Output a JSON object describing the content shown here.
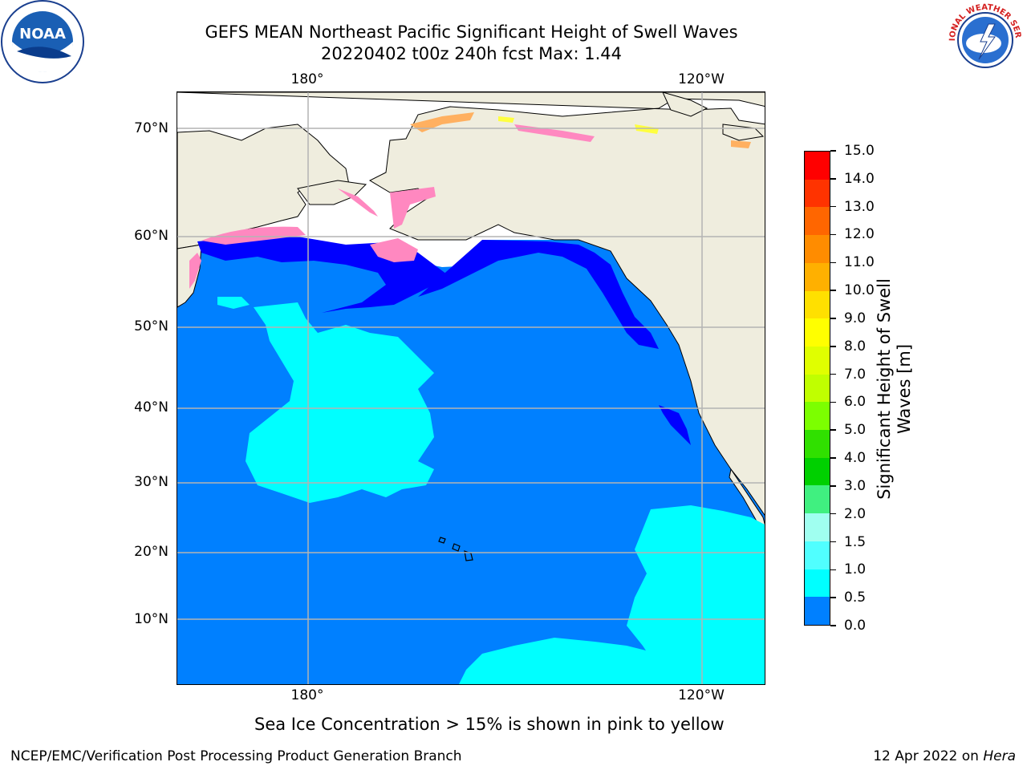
{
  "header": {
    "title_line1": "GEFS MEAN Northeast Pacific Significant Height of Swell Waves",
    "title_line2": "20220402 t00z 240h fcst   Max: 1.44"
  },
  "logos": {
    "left": {
      "text": "NOAA",
      "icon": "noaa-logo-icon"
    },
    "right": {
      "text": "NATIONAL WEATHER SERVICE",
      "icon": "nws-logo-icon"
    }
  },
  "map": {
    "lat_labels": [
      "70°N",
      "60°N",
      "50°N",
      "40°N",
      "30°N",
      "20°N",
      "10°N"
    ],
    "lon_labels": [
      "180°",
      "120°W"
    ],
    "colors": {
      "land": "#efedde",
      "ice_free_white": "#ffffff",
      "swell_0_05": "#0000ff",
      "swell_05_10": "#0080ff",
      "swell_10_15": "#00ffff",
      "ice_pink": "#ff88c0",
      "ice_orange": "#ffb060",
      "ice_yellow": "#ffff40",
      "grid": "#b4b4b4"
    }
  },
  "colorbar": {
    "label_line1": "Significant Height of Swell",
    "label_line2": "Waves [m]",
    "ticks": [
      "15.0",
      "14.0",
      "13.0",
      "12.0",
      "11.0",
      "10.0",
      "9.0",
      "8.0",
      "7.0",
      "6.0",
      "5.0",
      "4.0",
      "3.0",
      "2.0",
      "1.5",
      "1.0",
      "0.5",
      "0.0"
    ],
    "colors": [
      "#ff0000",
      "#ff3300",
      "#ff6600",
      "#ff8c00",
      "#ffb000",
      "#ffe000",
      "#ffff00",
      "#e0ff00",
      "#c0ff00",
      "#7cff00",
      "#30e000",
      "#00d000",
      "#40f080",
      "#a0fff0",
      "#50ffff",
      "#00ffff",
      "#0080ff",
      "#0000ff"
    ]
  },
  "footer": {
    "note": "Sea Ice Concentration > 15% is shown in pink to yellow",
    "left": "NCEP/EMC/Verification Post Processing Product Generation Branch",
    "right_date": "12 Apr 2022 on",
    "right_host": "Hera"
  }
}
